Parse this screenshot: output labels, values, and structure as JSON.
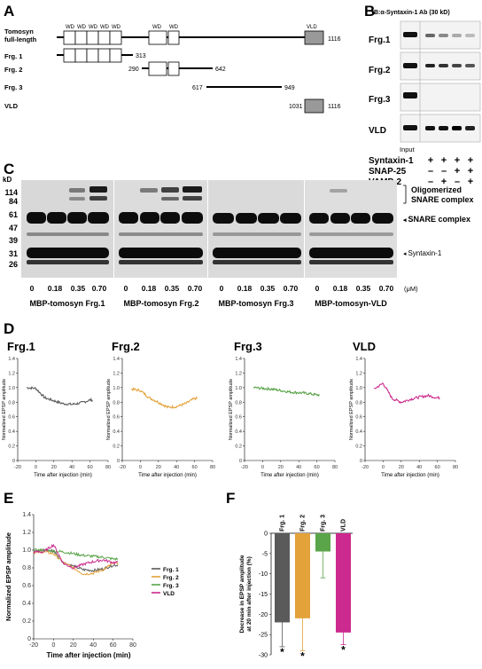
{
  "panels": {
    "A": {
      "letter": "A",
      "rows": [
        {
          "label": "Tomosyn\nfull-length",
          "end": "1116"
        },
        {
          "label": "Frg. 1",
          "end": "313"
        },
        {
          "label": "Frg. 2",
          "start": "290",
          "end": "642"
        },
        {
          "label": "Frg. 3",
          "start": "617",
          "end": "949"
        },
        {
          "label": "VLD",
          "start": "1031",
          "end": "1116"
        }
      ],
      "wd_label": "WD",
      "vld_label": "VLD"
    },
    "B": {
      "letter": "B",
      "header": "IB:α-Syntaxin-1 Ab (30 kD)",
      "rows": [
        "Frg.1",
        "Frg.2",
        "Frg.3",
        "VLD"
      ],
      "input_label": "Input",
      "conditions": [
        {
          "name": "Syntaxin-1",
          "signs": [
            "+",
            "+",
            "+",
            "+"
          ]
        },
        {
          "name": "SNAP-25",
          "signs": [
            "–",
            "–",
            "+",
            "+"
          ]
        },
        {
          "name": "VAMP-2",
          "signs": [
            "–",
            "+",
            "–",
            "+"
          ]
        }
      ]
    },
    "C": {
      "letter": "C",
      "kd_label": "kD",
      "markers": [
        "114",
        "84",
        "61",
        "47",
        "39",
        "31",
        "26"
      ],
      "annotations": [
        "Oligomerized\nSNARE complex",
        "SNARE complex",
        "Syntaxin-1"
      ],
      "concentrations": [
        "0",
        "0.18",
        "0.35",
        "0.70"
      ],
      "unit": "(μM)",
      "blots": [
        "MBP-tomosyn Frg.1",
        "MBP-tomosyn Frg.2",
        "MBP-tomosyn Frg.3",
        "MBP-tomosyn-VLD"
      ]
    },
    "D": {
      "letter": "D",
      "ylabel": "Normalized EPSP amplitude",
      "xlabel": "Time after injection  (min)",
      "yticks": [
        "0",
        "0.2",
        "0.4",
        "0.6",
        "0.8",
        "1.0",
        "1.2",
        "1.4"
      ],
      "xticks": [
        "-20",
        "0",
        "20",
        "40",
        "60",
        "80"
      ]
    },
    "E": {
      "letter": "E",
      "ylabel": "Normalized EPSP amplitude",
      "xlabel": "Time after injection (min)",
      "yticks": [
        "0",
        "0.2",
        "0.4",
        "0.6",
        "0.8",
        "1.0",
        "1.2",
        "1.4"
      ],
      "xticks": [
        "-20",
        "0",
        "20",
        "40",
        "60",
        "80"
      ]
    },
    "F": {
      "letter": "F",
      "ylabel": "Decrease in EPSP amplitude\nat 20 min after injection (%)",
      "yticks": [
        "0",
        "-5",
        "-10",
        "-15",
        "-20",
        "-25",
        "-30"
      ],
      "star": "*"
    }
  },
  "colors": {
    "Frg.1": "#5a5a5a",
    "Frg.2": "#e3a23a",
    "Frg.3": "#5aa54a",
    "VLD": "#cc2a8e"
  },
  "chart_data": [
    {
      "type": "line",
      "panel": "D",
      "title": "Frg.1",
      "x": [
        -10,
        0,
        10,
        20,
        30,
        40,
        50,
        60
      ],
      "series": [
        {
          "values": [
            1.0,
            0.99,
            0.86,
            0.82,
            0.78,
            0.77,
            0.79,
            0.83
          ]
        }
      ],
      "xlim": [
        -20,
        80
      ],
      "ylim": [
        0,
        1.4
      ]
    },
    {
      "type": "line",
      "panel": "D",
      "title": "Frg.2",
      "x": [
        -10,
        0,
        10,
        20,
        30,
        40,
        50,
        60
      ],
      "series": [
        {
          "values": [
            0.98,
            0.96,
            0.86,
            0.8,
            0.73,
            0.74,
            0.78,
            0.85
          ]
        }
      ],
      "xlim": [
        -20,
        80
      ],
      "ylim": [
        0,
        1.4
      ]
    },
    {
      "type": "line",
      "panel": "D",
      "title": "Frg.3",
      "x": [
        -10,
        0,
        10,
        20,
        30,
        40,
        50,
        60
      ],
      "series": [
        {
          "values": [
            1.0,
            0.99,
            0.98,
            0.96,
            0.94,
            0.93,
            0.92,
            0.9
          ]
        }
      ],
      "xlim": [
        -20,
        80
      ],
      "ylim": [
        0,
        1.4
      ]
    },
    {
      "type": "line",
      "panel": "D",
      "title": "VLD",
      "x": [
        -10,
        0,
        10,
        20,
        30,
        40,
        50,
        60
      ],
      "series": [
        {
          "values": [
            0.98,
            1.06,
            0.85,
            0.8,
            0.84,
            0.87,
            0.89,
            0.86
          ]
        }
      ],
      "xlim": [
        -20,
        80
      ],
      "ylim": [
        0,
        1.4
      ]
    },
    {
      "type": "line",
      "panel": "E",
      "x": [
        -20,
        -10,
        0,
        10,
        20,
        30,
        40,
        50,
        60
      ],
      "series": [
        {
          "name": "Frg. 1",
          "values": [
            1.0,
            1.0,
            0.99,
            0.86,
            0.82,
            0.78,
            0.77,
            0.79,
            0.83
          ]
        },
        {
          "name": "Frg. 2",
          "values": [
            0.97,
            0.98,
            0.96,
            0.86,
            0.8,
            0.73,
            0.74,
            0.78,
            0.85
          ]
        },
        {
          "name": "Frg. 3",
          "values": [
            1.0,
            1.0,
            0.99,
            0.98,
            0.96,
            0.94,
            0.93,
            0.92,
            0.9
          ]
        },
        {
          "name": "VLD",
          "values": [
            0.98,
            0.98,
            1.06,
            0.85,
            0.8,
            0.84,
            0.87,
            0.89,
            0.86
          ]
        }
      ],
      "xlim": [
        -20,
        80
      ],
      "ylim": [
        0,
        1.4
      ]
    },
    {
      "type": "bar",
      "panel": "F",
      "categories": [
        "Frg. 1",
        "Frg. 2",
        "Frg. 3",
        "VLD"
      ],
      "values": [
        -22,
        -21,
        -4.5,
        -24.5
      ],
      "errors": [
        6,
        8,
        6.5,
        3
      ],
      "ylim": [
        -30,
        0
      ]
    }
  ]
}
